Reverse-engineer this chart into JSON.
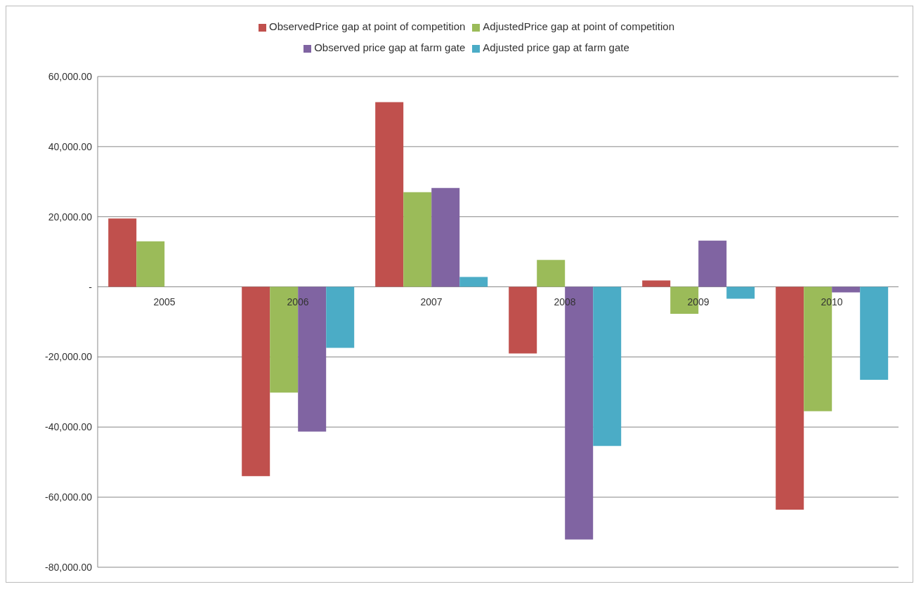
{
  "chart_data": {
    "type": "bar",
    "categories": [
      "2005",
      "2006",
      "2007",
      "2008",
      "2009",
      "2010"
    ],
    "series": [
      {
        "name": "ObservedPrice gap at point of competition",
        "color": "#c0504d",
        "values": [
          19500,
          -54000,
          52700,
          -19000,
          1800,
          -63600
        ]
      },
      {
        "name": "AdjustedPrice gap at point of competition",
        "color": "#9bbb59",
        "values": [
          13000,
          -30200,
          27000,
          7700,
          -7700,
          -35500
        ]
      },
      {
        "name": "Observed price gap at farm gate",
        "color": "#8064a2",
        "values": [
          0,
          -41300,
          28200,
          -72100,
          13200,
          -1600
        ]
      },
      {
        "name": "Adjusted price gap at farm gate",
        "color": "#4bacc6",
        "values": [
          0,
          -17400,
          2800,
          -45400,
          -3400,
          -26500
        ]
      }
    ],
    "ylim": [
      -80000,
      60000
    ],
    "yticks": [
      {
        "value": -80000,
        "label": "-80,000.00"
      },
      {
        "value": -60000,
        "label": "-60,000.00"
      },
      {
        "value": -40000,
        "label": "-40,000.00"
      },
      {
        "value": -20000,
        "label": "-20,000.00"
      },
      {
        "value": 0,
        "label": "-"
      },
      {
        "value": 20000,
        "label": "20,000.00"
      },
      {
        "value": 40000,
        "label": "40,000.00"
      },
      {
        "value": 60000,
        "label": "60,000.00"
      }
    ],
    "grid": "y",
    "legend": "top"
  }
}
